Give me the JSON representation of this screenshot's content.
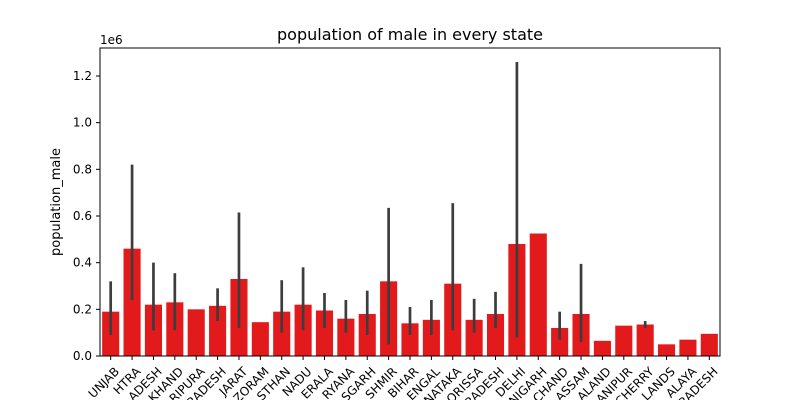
{
  "chart_data": {
    "type": "bar",
    "title": "population of male in every state",
    "xlabel": "",
    "ylabel": "population_male",
    "y_multiplier": "1e6",
    "ylim": [
      0,
      1.32
    ],
    "yticks": [
      "0.0",
      "0.2",
      "0.4",
      "0.6",
      "0.8",
      "1.0",
      "1.2"
    ],
    "ytick_values": [
      0.0,
      0.2,
      0.4,
      0.6,
      0.8,
      1.0,
      1.2
    ],
    "bar_color": "#e31a1c",
    "error_bar_color": "#3d3d3d",
    "grid": false,
    "categories": [
      "UNJAB",
      "HTRA",
      "ADESH",
      "KHAND",
      "RIPURA",
      "RADESH",
      "JARAT",
      "ZORAM",
      "STHAN",
      "NADU",
      "ERALA",
      "RYANA",
      "SGARH",
      "SHMIR",
      "BIHAR",
      "ENGAL",
      "NATAKA",
      "ORISSA",
      "RADESH",
      "DELHI",
      "NIGARH",
      "CHAND",
      "ASSAM",
      "ALAND",
      "ANIPUR",
      "CHERRY",
      "LANDS",
      "ALAYA",
      "RADESH"
    ],
    "values": [
      0.19,
      0.46,
      0.22,
      0.23,
      0.2,
      0.215,
      0.33,
      0.145,
      0.19,
      0.22,
      0.195,
      0.16,
      0.18,
      0.32,
      0.14,
      0.155,
      0.31,
      0.155,
      0.18,
      0.48,
      0.525,
      0.12,
      0.18,
      0.065,
      0.13,
      0.135,
      0.05,
      0.07,
      0.095
    ],
    "error_low": [
      0.09,
      0.24,
      0.11,
      0.11,
      null,
      0.15,
      0.12,
      null,
      0.1,
      0.11,
      0.12,
      0.1,
      0.09,
      0.05,
      0.09,
      0.09,
      0.11,
      0.1,
      0.12,
      0.08,
      null,
      0.07,
      0.06,
      null,
      null,
      0.12,
      null,
      null,
      null
    ],
    "error_high": [
      0.32,
      0.82,
      0.4,
      0.355,
      null,
      0.29,
      0.615,
      null,
      0.325,
      0.38,
      0.27,
      0.24,
      0.28,
      0.635,
      0.21,
      0.24,
      0.655,
      0.245,
      0.275,
      1.26,
      null,
      0.19,
      0.395,
      null,
      null,
      0.15,
      null,
      null,
      null
    ]
  }
}
